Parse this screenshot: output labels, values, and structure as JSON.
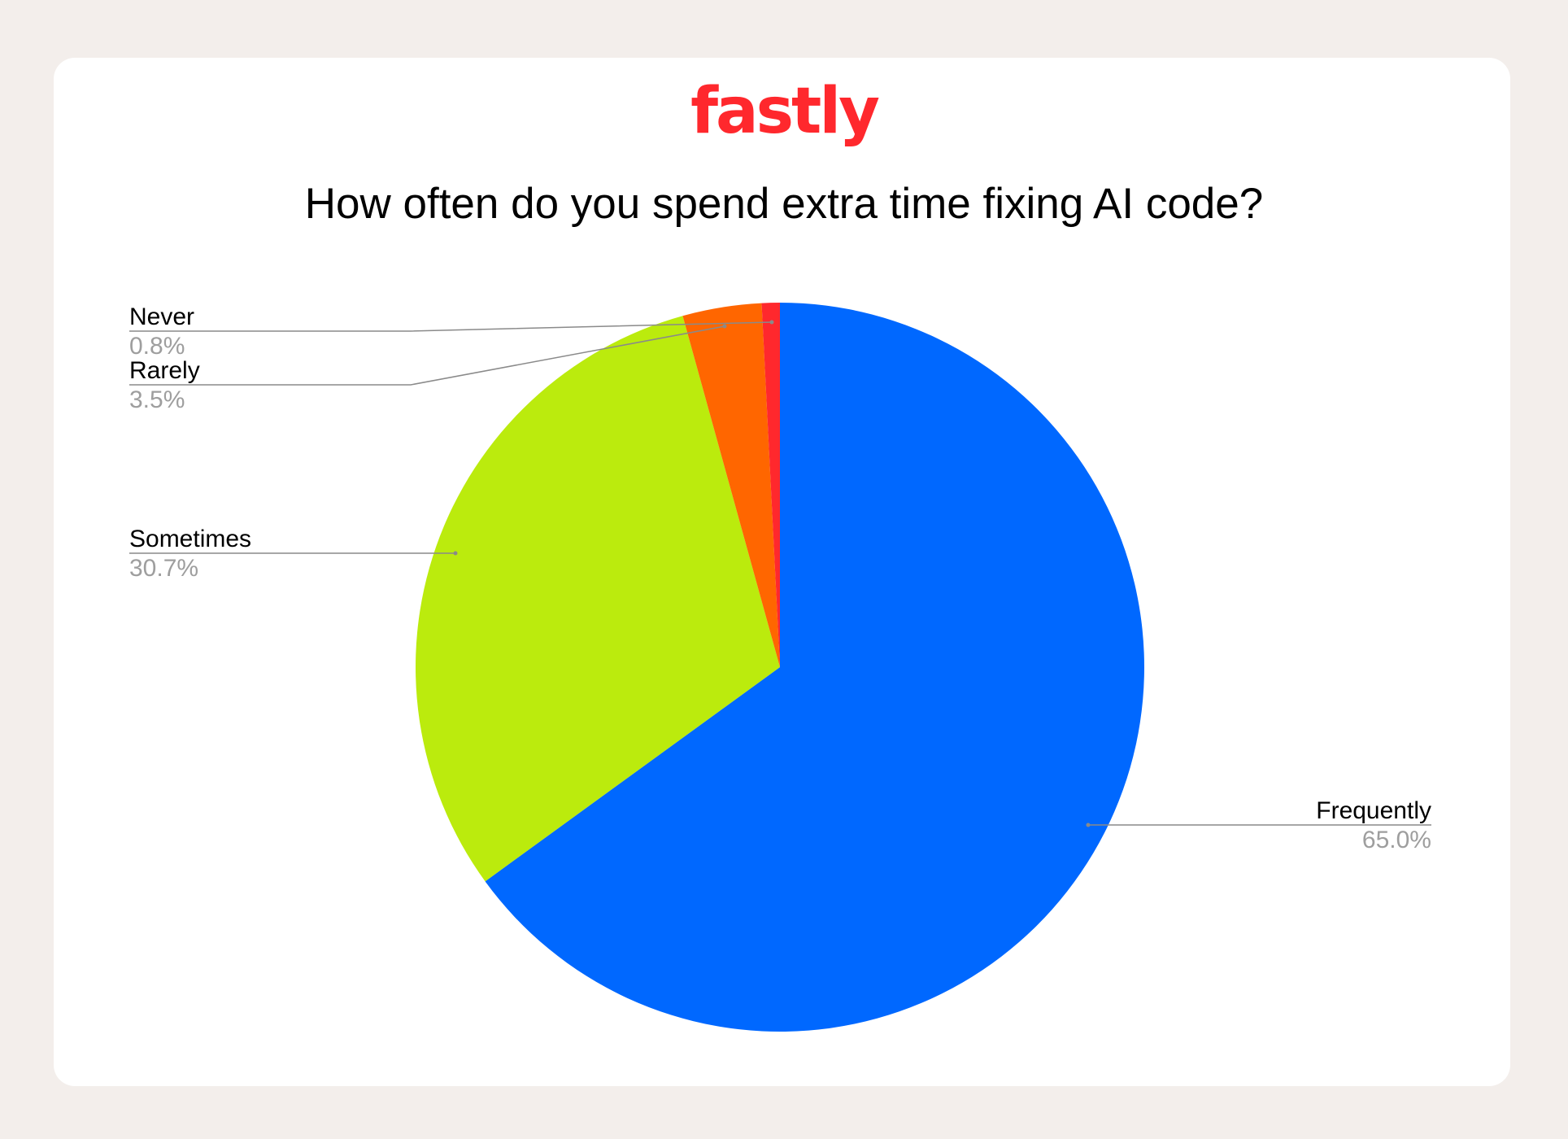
{
  "logo": {
    "text": "fastly",
    "color": "#ff282d"
  },
  "chart_data": {
    "type": "pie",
    "title": "How often do you spend extra time fixing AI code?",
    "start": "top",
    "direction": "clockwise",
    "slices": [
      {
        "label": "Frequently",
        "value": 65.0,
        "display": "65.0%",
        "color": "#0068ff"
      },
      {
        "label": "Sometimes",
        "value": 30.7,
        "display": "30.7%",
        "color": "#bbeb0d"
      },
      {
        "label": "Rarely",
        "value": 3.5,
        "display": "3.5%",
        "color": "#ff6600"
      },
      {
        "label": "Never",
        "value": 0.8,
        "display": "0.8%",
        "color": "#ff282d"
      }
    ],
    "legend": "none",
    "label_style": "leader lines"
  },
  "colors": {
    "background": "#f3eeeb",
    "card": "#ffffff",
    "label": "#000000",
    "value": "#9e9e9e",
    "leader": "#8a8a8a"
  }
}
